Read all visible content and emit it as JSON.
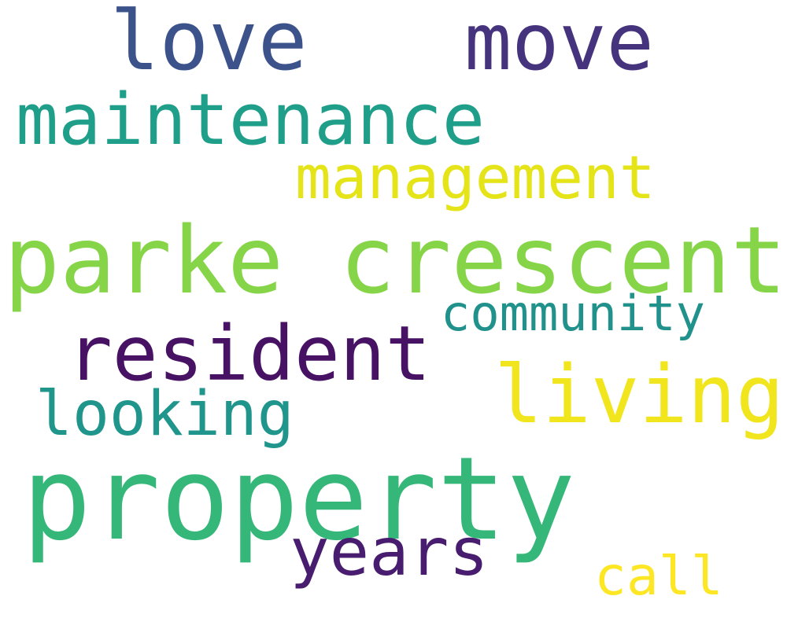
{
  "word_cloud": {
    "words": [
      {
        "id": "love",
        "text": "love",
        "color": "#3b528b"
      },
      {
        "id": "move",
        "text": "move",
        "color": "#46337e"
      },
      {
        "id": "maintenance",
        "text": "maintenance",
        "color": "#1f9e89"
      },
      {
        "id": "management",
        "text": "management",
        "color": "#e4e419"
      },
      {
        "id": "parke_crescent",
        "text": "parke crescent",
        "color": "#86d549"
      },
      {
        "id": "community",
        "text": "community",
        "color": "#21918c"
      },
      {
        "id": "resident",
        "text": "resident",
        "color": "#471164"
      },
      {
        "id": "living",
        "text": "living",
        "color": "#f1e51d"
      },
      {
        "id": "looking",
        "text": "looking",
        "color": "#1f958b"
      },
      {
        "id": "property",
        "text": "property",
        "color": "#35b779"
      },
      {
        "id": "years",
        "text": "years",
        "color": "#481c6e"
      },
      {
        "id": "call",
        "text": "call",
        "color": "#fde725"
      }
    ]
  }
}
